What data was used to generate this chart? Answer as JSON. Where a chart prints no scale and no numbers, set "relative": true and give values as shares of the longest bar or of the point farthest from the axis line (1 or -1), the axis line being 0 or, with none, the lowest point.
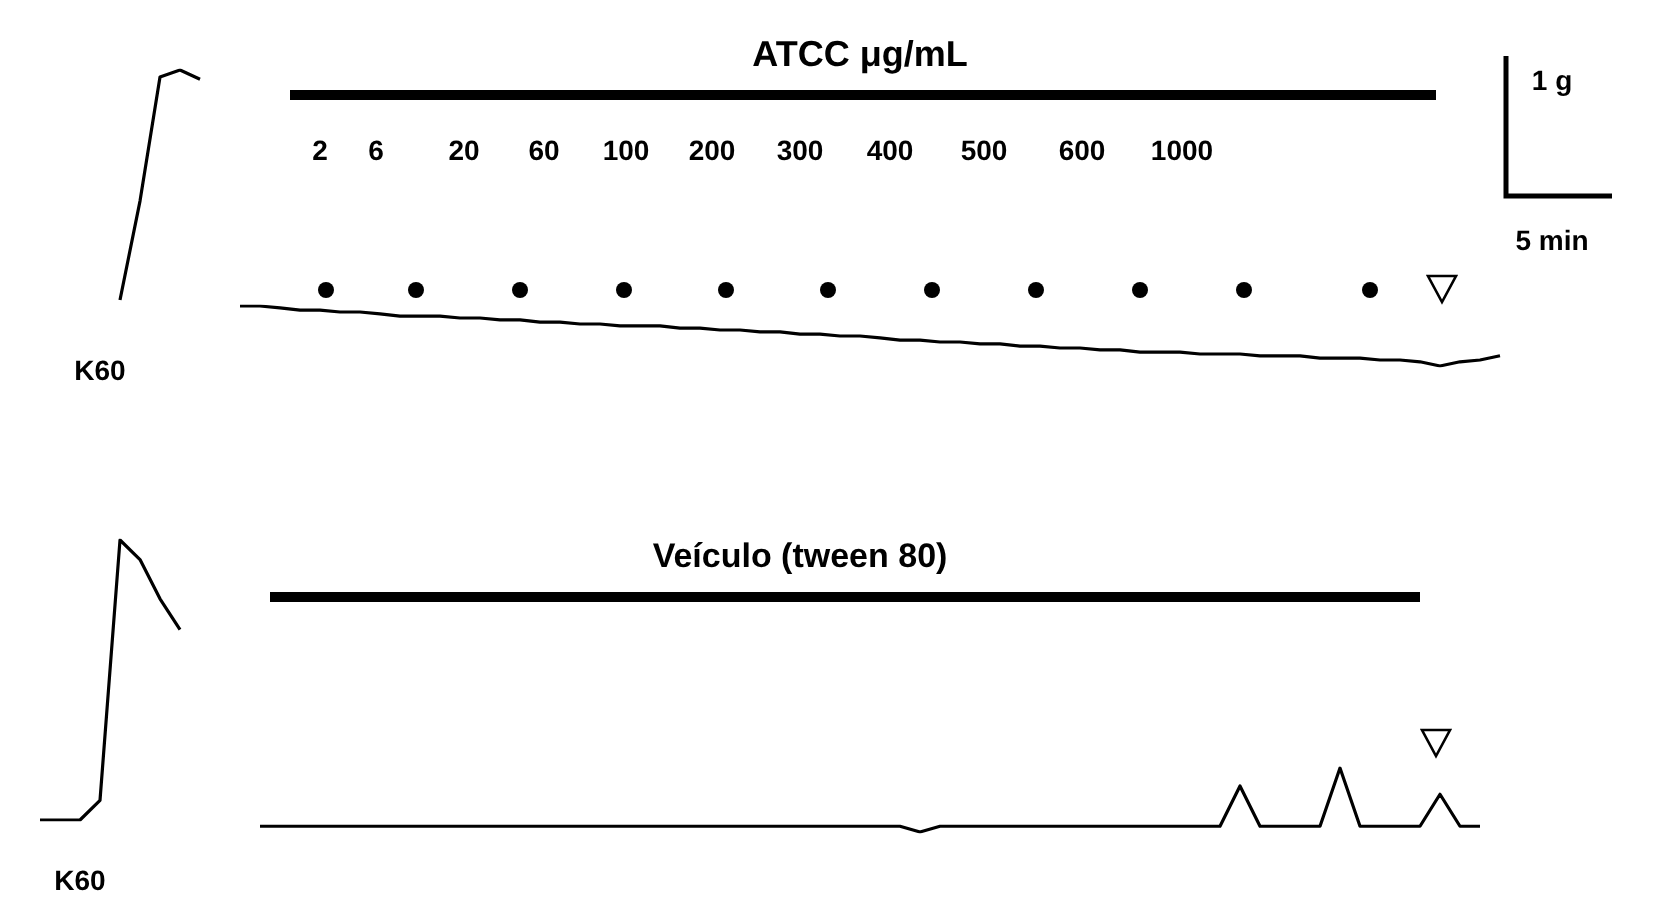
{
  "chart_data": [
    {
      "type": "line",
      "relative": true,
      "marker": "none",
      "categories": [
        null,
        null,
        null,
        null,
        null
      ],
      "series": [
        {
          "color": "#000000",
          "values": [
            0,
            0.43,
            0.97,
            1,
            0.96
          ]
        }
      ],
      "annotations": [
        "K60"
      ]
    },
    {
      "type": "line",
      "relative": true,
      "marker": "none",
      "categories": [
        null,
        null,
        null,
        null,
        null,
        null,
        null,
        null,
        null,
        null,
        null,
        null,
        null,
        null,
        null,
        null,
        null,
        null,
        null,
        null,
        null,
        null,
        null,
        null,
        null,
        null,
        null,
        null,
        null,
        null,
        null,
        null,
        null,
        null,
        null,
        null,
        null,
        null,
        null,
        null,
        null,
        null,
        null,
        null,
        null,
        null,
        null,
        null,
        null,
        null,
        null,
        null,
        null,
        null,
        null,
        null,
        null,
        null,
        null,
        null,
        null,
        null,
        null,
        null
      ],
      "series": [
        {
          "color": "#000000",
          "values": [
            1,
            1,
            0.97,
            0.93,
            0.93,
            0.9,
            0.9,
            0.87,
            0.83,
            0.83,
            0.83,
            0.8,
            0.8,
            0.77,
            0.77,
            0.73,
            0.73,
            0.7,
            0.7,
            0.67,
            0.67,
            0.67,
            0.63,
            0.63,
            0.6,
            0.6,
            0.57,
            0.57,
            0.53,
            0.53,
            0.5,
            0.5,
            0.47,
            0.43,
            0.43,
            0.4,
            0.4,
            0.37,
            0.37,
            0.33,
            0.33,
            0.3,
            0.3,
            0.27,
            0.27,
            0.23,
            0.23,
            0.23,
            0.2,
            0.2,
            0.2,
            0.17,
            0.17,
            0.17,
            0.13,
            0.13,
            0.13,
            0.1,
            0.1,
            0.07,
            0,
            0.07,
            0.1,
            0.17
          ]
        }
      ],
      "annotations": [
        "ATCC μg/mL",
        "2",
        "6",
        "20",
        "60",
        "100",
        "200",
        "300",
        "400",
        "500",
        "600",
        "1000",
        "1 g",
        "5 min"
      ]
    },
    {
      "type": "line",
      "relative": true,
      "marker": "none",
      "categories": [
        null,
        null,
        null,
        null,
        null,
        null,
        null,
        null
      ],
      "series": [
        {
          "color": "#000000",
          "values": [
            0,
            0,
            0,
            0.07,
            1,
            0.93,
            0.79,
            0.68
          ]
        }
      ],
      "annotations": [
        "K60"
      ]
    },
    {
      "type": "line",
      "relative": true,
      "marker": "none",
      "categories": [
        null,
        null,
        null,
        null,
        null,
        null,
        null,
        null,
        null,
        null,
        null,
        null,
        null,
        null,
        null,
        null,
        null,
        null,
        null,
        null,
        null,
        null,
        null,
        null,
        null,
        null,
        null,
        null,
        null,
        null,
        null,
        null,
        null,
        null,
        null,
        null,
        null,
        null,
        null,
        null,
        null,
        null,
        null,
        null,
        null,
        null,
        null,
        null,
        null,
        null,
        null,
        null,
        null,
        null,
        null,
        null,
        null,
        null,
        null,
        null,
        null,
        null
      ],
      "series": [
        {
          "color": "#000000",
          "values": [
            0.09,
            0.09,
            0.09,
            0.09,
            0.09,
            0.09,
            0.09,
            0.09,
            0.09,
            0.09,
            0.09,
            0.09,
            0.09,
            0.09,
            0.09,
            0.09,
            0.09,
            0.09,
            0.09,
            0.09,
            0.09,
            0.09,
            0.09,
            0.09,
            0.09,
            0.09,
            0.09,
            0.09,
            0.09,
            0.09,
            0.09,
            0.09,
            0.09,
            0,
            0.09,
            0.09,
            0.09,
            0.09,
            0.09,
            0.09,
            0.09,
            0.09,
            0.09,
            0.09,
            0.09,
            0.09,
            0.09,
            0.09,
            0.09,
            0.72,
            0.09,
            0.09,
            0.09,
            0.09,
            1,
            0.09,
            0.09,
            0.09,
            0.09,
            0.59,
            0.09,
            0.09
          ]
        }
      ],
      "annotations": [
        "Veículo (tween 80)"
      ]
    }
  ]
}
